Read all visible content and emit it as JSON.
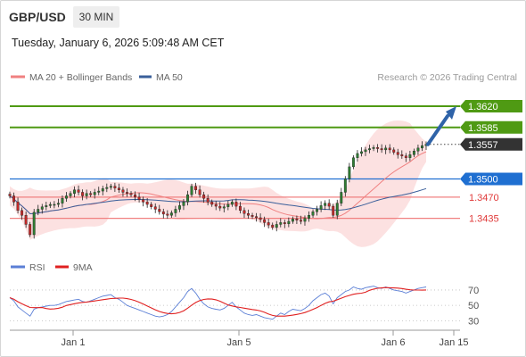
{
  "header": {
    "symbol": "GBP/USD",
    "timeframe": "30 MIN",
    "datetime": "Tuesday, January 6, 2026 5:09:48 AM CET"
  },
  "legend": {
    "bb_label": "MA 20 + Bollinger Bands",
    "ma50_label": "MA 50",
    "credit": "Research © 2026 Trading Central",
    "rsi_label": "RSI",
    "rsi_ma_label": "9MA"
  },
  "colors": {
    "bullish_level": "#4f9a13",
    "pivot": "#1f6fd1",
    "bearish_level": "#f08080",
    "bands_fill": "#fcdcdc",
    "ma20": "#f08080",
    "ma50": "#3a5f9a",
    "arrow": "#2f63a8",
    "rsi": "#5b7fd6",
    "rsi_ma": "#e02020",
    "last_price_tag": "#333333"
  },
  "chart_data": [
    {
      "type": "candlestick",
      "name": "price",
      "ylim": [
        1.338,
        1.3645
      ],
      "x_ticks": [
        "Jan 1",
        "Jan 5",
        "Jan 6",
        "Jan 15"
      ],
      "price_levels": [
        {
          "value": 1.362,
          "label": "1.3620",
          "kind": "resistance"
        },
        {
          "value": 1.3585,
          "label": "1.3585",
          "kind": "resistance"
        },
        {
          "value": 1.3557,
          "label": "1.3557",
          "kind": "last"
        },
        {
          "value": 1.35,
          "label": "1.3500",
          "kind": "pivot"
        },
        {
          "value": 1.347,
          "label": "1.3470",
          "kind": "support"
        },
        {
          "value": 1.3435,
          "label": "1.3435",
          "kind": "support"
        }
      ],
      "closes": [
        1.3472,
        1.3462,
        1.3448,
        1.344,
        1.3425,
        1.3408,
        1.3445,
        1.345,
        1.3454,
        1.3456,
        1.3458,
        1.3458,
        1.346,
        1.3468,
        1.3472,
        1.3476,
        1.3482,
        1.3478,
        1.3472,
        1.3476,
        1.3474,
        1.3478,
        1.348,
        1.3484,
        1.3486,
        1.3488,
        1.3485,
        1.3482,
        1.3478,
        1.3476,
        1.3474,
        1.347,
        1.3466,
        1.3462,
        1.3458,
        1.3454,
        1.345,
        1.3446,
        1.3442,
        1.344,
        1.3444,
        1.345,
        1.3456,
        1.3462,
        1.3474,
        1.3488,
        1.3482,
        1.3474,
        1.3468,
        1.3462,
        1.3458,
        1.3455,
        1.3452,
        1.3454,
        1.3458,
        1.3462,
        1.3455,
        1.3448,
        1.3443,
        1.344,
        1.3438,
        1.3436,
        1.3433,
        1.3428,
        1.3424,
        1.342,
        1.3425,
        1.3428,
        1.3426,
        1.343,
        1.3434,
        1.3432,
        1.343,
        1.3435,
        1.344,
        1.3446,
        1.345,
        1.3456,
        1.346,
        1.3455,
        1.344,
        1.346,
        1.3478,
        1.35,
        1.352,
        1.3535,
        1.3542,
        1.3545,
        1.3548,
        1.355,
        1.3552,
        1.355,
        1.3548,
        1.3551,
        1.3548,
        1.3544,
        1.354,
        1.3538,
        1.3535,
        1.354,
        1.3546,
        1.3551,
        1.3555,
        1.3557
      ]
    },
    {
      "type": "line",
      "name": "rsi",
      "ylim": [
        20,
        85
      ],
      "y_ticks": [
        70,
        50,
        30
      ],
      "values": [
        60,
        56,
        48,
        44,
        40,
        36,
        45,
        47,
        48,
        49,
        50,
        50,
        51,
        53,
        55,
        56,
        57,
        58,
        55,
        54,
        56,
        58,
        60,
        62,
        63,
        64,
        60,
        58,
        54,
        50,
        48,
        46,
        44,
        42,
        40,
        38,
        36,
        35,
        36,
        38,
        42,
        48,
        54,
        60,
        68,
        72,
        66,
        58,
        52,
        48,
        46,
        45,
        44,
        46,
        50,
        54,
        48,
        44,
        40,
        38,
        37,
        38,
        36,
        34,
        33,
        32,
        36,
        40,
        38,
        42,
        45,
        44,
        43,
        46,
        50,
        56,
        60,
        64,
        66,
        62,
        52,
        60,
        64,
        68,
        70,
        74,
        72,
        71,
        73,
        74,
        75,
        73,
        72,
        74,
        72,
        70,
        69,
        68,
        66,
        68,
        70,
        72,
        73,
        74
      ]
    }
  ]
}
